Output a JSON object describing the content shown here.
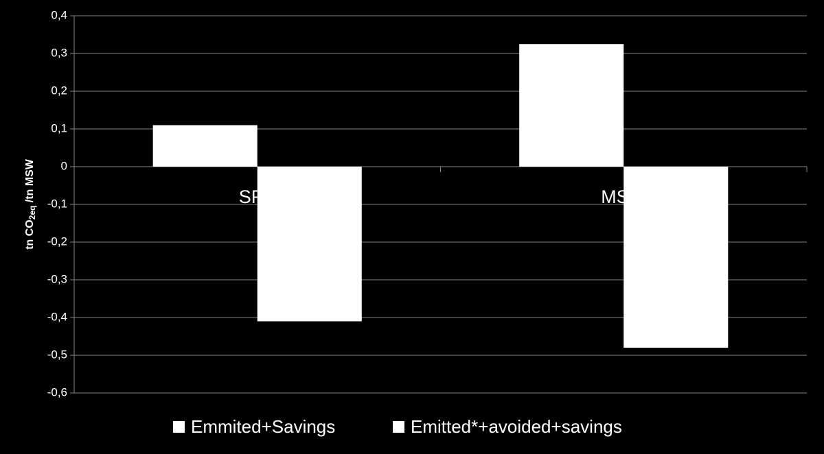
{
  "chart_data": {
    "type": "bar",
    "y_label": [
      "tn CO",
      "2eq",
      " /tn MSW"
    ],
    "categories": [
      "SRF",
      "MSW"
    ],
    "series": [
      {
        "name": "Emmited+Savings",
        "color": "#ffffff",
        "values": [
          0.11,
          0.325
        ]
      },
      {
        "name": "Emitted*+avoided+savings",
        "color": "#ffffff",
        "values": [
          -0.41,
          -0.48
        ]
      }
    ],
    "ylim": [
      -0.6,
      0.4
    ],
    "yticks": [
      {
        "value": -0.6,
        "label": "-0,6"
      },
      {
        "value": -0.5,
        "label": "-0,5"
      },
      {
        "value": -0.4,
        "label": "-0,4"
      },
      {
        "value": -0.3,
        "label": "-0,3"
      },
      {
        "value": -0.2,
        "label": "-0,2"
      },
      {
        "value": -0.1,
        "label": "-0,1"
      },
      0,
      {
        "value": 0.1,
        "label": "0,1"
      },
      {
        "value": 0.2,
        "label": "0,2"
      },
      {
        "value": 0.3,
        "label": "0,3"
      },
      {
        "value": 0.4,
        "label": "0,4"
      }
    ],
    "grid": true,
    "legend": "bottom"
  }
}
